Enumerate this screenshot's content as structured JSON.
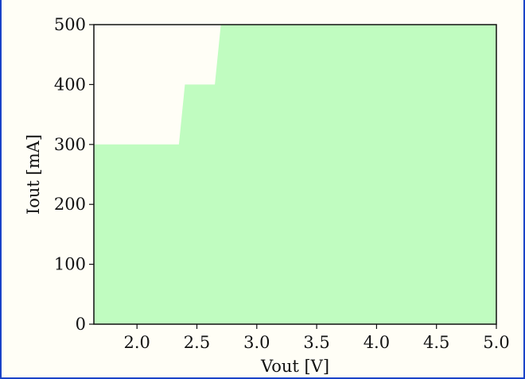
{
  "chart_data": {
    "type": "area",
    "title": "",
    "xlabel": "Vout [V]",
    "ylabel": "Iout [mA]",
    "xlim": [
      1.64,
      5.0
    ],
    "ylim": [
      0,
      500
    ],
    "x_ticks": [
      2.0,
      2.5,
      3.0,
      3.5,
      4.0,
      4.5,
      5.0
    ],
    "x_tick_labels": [
      "2.0",
      "2.5",
      "3.0",
      "3.5",
      "4.0",
      "4.5",
      "5.0"
    ],
    "y_ticks": [
      0,
      100,
      200,
      300,
      400,
      500
    ],
    "y_tick_labels": [
      "0",
      "100",
      "200",
      "300",
      "400",
      "500"
    ],
    "grid": false,
    "legend": "none",
    "series": [
      {
        "x": [
          1.64,
          2.35,
          2.4,
          2.65,
          2.7,
          5.0
        ],
        "y": [
          300,
          300,
          400,
          400,
          500,
          500
        ]
      }
    ],
    "colors": {
      "fill": "#c0fcc0",
      "background": "#fffef6",
      "axes": "#111111",
      "frame": "#1a43c8"
    }
  }
}
